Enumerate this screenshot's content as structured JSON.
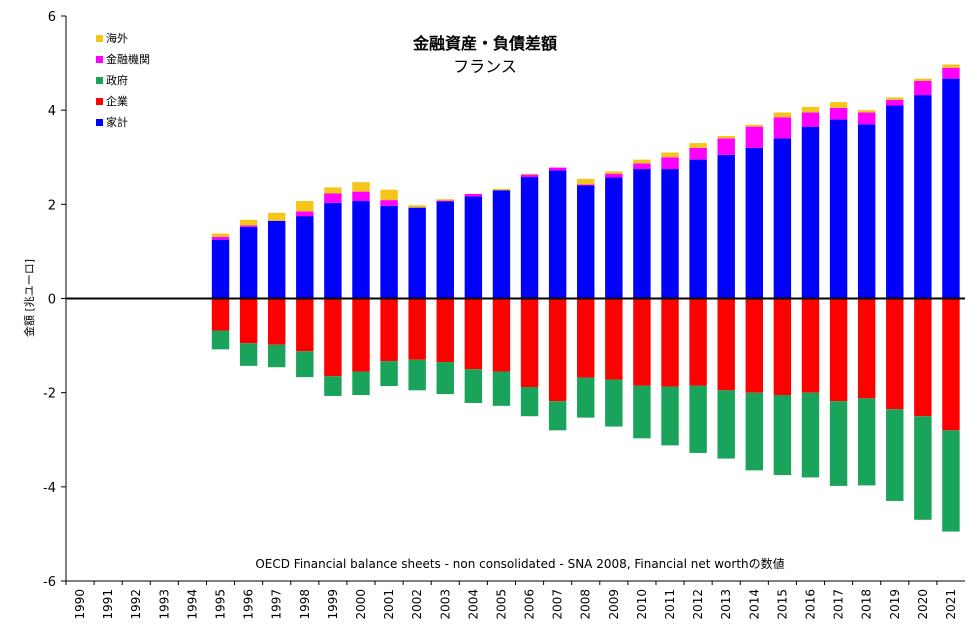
{
  "chart_data": {
    "type": "bar",
    "stacked": true,
    "title": "金融資産・負債差額",
    "subtitle": "フランス",
    "ylabel": "金額 [兆ユーロ]",
    "note": "OECD Financial balance sheets - non consolidated - SNA 2008, Financial net worthの数値",
    "ylim": [
      -6,
      6
    ],
    "yticks": [
      -6,
      -4,
      -2,
      0,
      2,
      4,
      6
    ],
    "grid": false,
    "legend_position": "top-left",
    "categories": [
      "1990",
      "1991",
      "1992",
      "1993",
      "1994",
      "1995",
      "1996",
      "1997",
      "1998",
      "1999",
      "2000",
      "2001",
      "2002",
      "2003",
      "2004",
      "2005",
      "2006",
      "2007",
      "2008",
      "2009",
      "2010",
      "2011",
      "2012",
      "2013",
      "2014",
      "2015",
      "2016",
      "2017",
      "2018",
      "2019",
      "2020",
      "2021"
    ],
    "series": [
      {
        "name": "海外",
        "color": "#f5c518",
        "values": [
          null,
          null,
          null,
          null,
          null,
          0.07,
          0.12,
          0.17,
          0.22,
          0.13,
          0.2,
          0.22,
          0.05,
          0.03,
          0.0,
          0.03,
          0.02,
          0.0,
          0.12,
          0.05,
          0.08,
          0.1,
          0.1,
          0.05,
          0.04,
          0.1,
          0.12,
          0.12,
          0.05,
          0.05,
          0.05,
          0.07
        ]
      },
      {
        "name": "金融機関",
        "color": "#ff00ff",
        "values": [
          null,
          null,
          null,
          null,
          null,
          0.06,
          0.03,
          0.0,
          0.1,
          0.2,
          0.2,
          0.12,
          0.0,
          0.02,
          0.05,
          0.0,
          0.05,
          0.06,
          0.02,
          0.08,
          0.12,
          0.25,
          0.25,
          0.35,
          0.45,
          0.45,
          0.3,
          0.25,
          0.25,
          0.12,
          0.3,
          0.23
        ]
      },
      {
        "name": "政府",
        "color": "#1aa35a",
        "values": [
          null,
          null,
          null,
          null,
          null,
          -0.4,
          -0.48,
          -0.48,
          -0.55,
          -0.42,
          -0.5,
          -0.53,
          -0.65,
          -0.68,
          -0.72,
          -0.73,
          -0.62,
          -0.62,
          -0.85,
          -1.0,
          -1.12,
          -1.25,
          -1.43,
          -1.45,
          -1.65,
          -1.7,
          -1.8,
          -1.8,
          -1.85,
          -1.95,
          -2.2,
          -2.15
        ]
      },
      {
        "name": "企業",
        "color": "#ff0000",
        "values": [
          null,
          null,
          null,
          null,
          null,
          -0.68,
          -0.95,
          -0.98,
          -1.12,
          -1.65,
          -1.55,
          -1.33,
          -1.3,
          -1.35,
          -1.5,
          -1.55,
          -1.88,
          -2.18,
          -1.68,
          -1.72,
          -1.85,
          -1.87,
          -1.85,
          -1.95,
          -2.0,
          -2.05,
          -2.0,
          -2.18,
          -2.12,
          -2.35,
          -2.5,
          -2.8
        ]
      },
      {
        "name": "家計",
        "color": "#0000ff",
        "values": [
          null,
          null,
          null,
          null,
          null,
          1.25,
          1.52,
          1.65,
          1.75,
          2.03,
          2.07,
          1.97,
          1.93,
          2.06,
          2.17,
          2.3,
          2.58,
          2.72,
          2.4,
          2.57,
          2.75,
          2.75,
          2.95,
          3.05,
          3.2,
          3.4,
          3.65,
          3.8,
          3.7,
          4.1,
          4.32,
          4.67
        ]
      }
    ]
  }
}
